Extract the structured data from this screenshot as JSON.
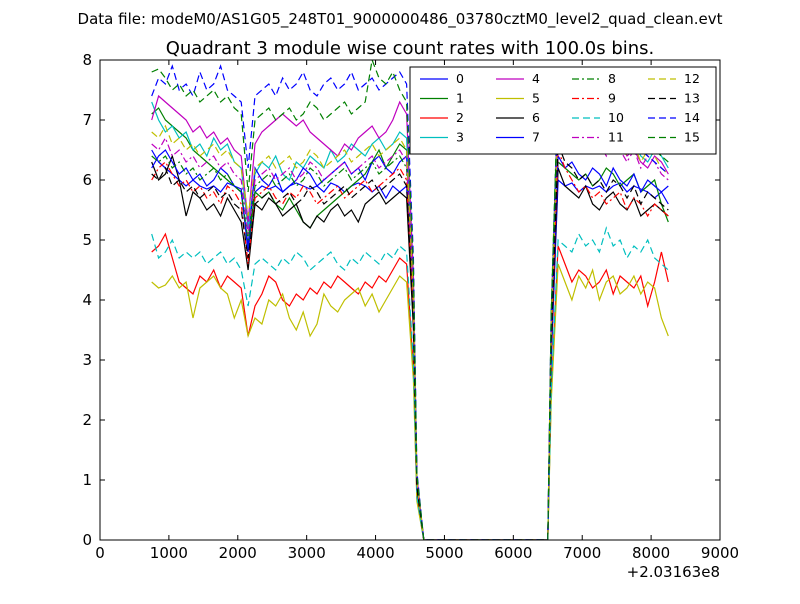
{
  "header": {
    "data_file": "Data file: modeM0/AS1G05_248T01_9000000486_03780cztM0_level2_quad_clean.evt"
  },
  "chart_data": {
    "type": "line",
    "title": "Quadrant 3 module wise count rates with 100.0s bins.",
    "xlabel": "",
    "ylabel": "",
    "xlim": [
      0,
      9000
    ],
    "ylim": [
      0,
      8
    ],
    "xticks": [
      0,
      1000,
      2000,
      3000,
      4000,
      5000,
      6000,
      7000,
      8000,
      9000
    ],
    "yticks": [
      0,
      1,
      2,
      3,
      4,
      5,
      6,
      7,
      8
    ],
    "offset_label": "+2.03163e8",
    "grid": false,
    "legend_position": "top-right",
    "legend_columns": 4,
    "x_start": 750,
    "x_step": 100,
    "gap": {
      "drop_start": 4550,
      "zero_start": 4700,
      "zero_end": 6500,
      "rise_end": 6650
    },
    "x_end": 8150,
    "series": [
      {
        "name": "0",
        "color": "#0000ff",
        "style": "solid",
        "pre": [
          6.5,
          6.3,
          6.2,
          6.1,
          6.0,
          5.9,
          6.0,
          5.9,
          5.85,
          5.9,
          5.8,
          5.95,
          5.9,
          5.85,
          4.8,
          5.8,
          5.9,
          5.85,
          5.9,
          5.8,
          5.9,
          5.95,
          5.9,
          5.85,
          5.9,
          5.8,
          5.95,
          5.9,
          5.8,
          5.9,
          5.95,
          5.9,
          5.8,
          5.9,
          5.7,
          5.9,
          5.8,
          5.9
        ],
        "post": [
          6.0,
          5.9,
          5.95,
          5.8,
          5.9,
          5.85,
          5.9,
          5.8,
          5.9,
          5.95,
          5.8,
          5.9,
          5.85,
          5.8,
          5.7,
          5.8,
          5.6
        ]
      },
      {
        "name": "1",
        "color": "#008000",
        "style": "solid",
        "pre": [
          7.1,
          7.2,
          7.0,
          6.9,
          6.8,
          6.7,
          6.5,
          6.4,
          6.3,
          6.2,
          6.1,
          6.0,
          5.9,
          5.8,
          4.9,
          5.8,
          5.7,
          5.8,
          5.6,
          5.5,
          5.7,
          5.5,
          5.3,
          5.2,
          5.4,
          5.5,
          5.6,
          5.7,
          5.8,
          5.9,
          6.0,
          6.1,
          6.3,
          6.5,
          6.2,
          6.4,
          6.6,
          6.5
        ],
        "post": [
          6.3,
          6.2,
          6.1,
          6.0,
          6.1,
          5.9,
          6.0,
          6.2,
          6.1,
          5.9,
          6.0,
          6.1,
          5.8,
          5.9,
          6.0,
          5.6,
          5.3
        ]
      },
      {
        "name": "2",
        "color": "#ff0000",
        "style": "solid",
        "pre": [
          4.8,
          4.9,
          5.1,
          4.7,
          4.3,
          4.2,
          4.1,
          4.4,
          4.3,
          4.5,
          4.2,
          4.4,
          4.3,
          4.2,
          3.4,
          3.9,
          4.1,
          4.4,
          4.3,
          4.0,
          3.9,
          4.1,
          4.0,
          4.2,
          4.1,
          4.3,
          4.2,
          4.4,
          4.3,
          4.2,
          4.1,
          4.3,
          4.2,
          4.4,
          4.3,
          4.5,
          4.7,
          4.6
        ],
        "post": [
          4.9,
          4.6,
          4.3,
          4.5,
          4.4,
          4.2,
          4.3,
          4.5,
          4.1,
          4.4,
          4.3,
          4.2,
          4.4,
          3.9,
          4.3,
          4.8,
          4.3
        ]
      },
      {
        "name": "3",
        "color": "#00bfbf",
        "style": "solid",
        "pre": [
          7.3,
          7.0,
          6.8,
          6.9,
          6.7,
          6.8,
          6.5,
          6.6,
          6.4,
          6.7,
          6.5,
          6.6,
          6.3,
          6.2,
          5.2,
          6.1,
          6.3,
          6.2,
          6.4,
          6.1,
          6.0,
          6.3,
          6.2,
          6.4,
          6.3,
          6.2,
          6.5,
          6.3,
          6.4,
          6.6,
          6.5,
          6.4,
          6.6,
          6.7,
          6.5,
          6.6,
          6.8,
          6.7
        ],
        "post": [
          7.5,
          7.2,
          6.9,
          7.0,
          6.8,
          6.7,
          6.9,
          6.6,
          6.8,
          6.7,
          6.5,
          6.6,
          6.4,
          6.3,
          6.5,
          6.4,
          6.2
        ]
      },
      {
        "name": "4",
        "color": "#bf00bf",
        "style": "solid",
        "pre": [
          7.0,
          7.4,
          7.3,
          7.2,
          7.1,
          7.0,
          6.8,
          6.9,
          6.7,
          6.8,
          6.6,
          6.7,
          6.5,
          6.4,
          5.3,
          6.6,
          6.8,
          6.9,
          7.0,
          7.1,
          7.0,
          6.9,
          7.0,
          6.8,
          6.7,
          6.6,
          6.5,
          6.4,
          6.6,
          6.5,
          6.7,
          6.8,
          6.9,
          6.7,
          6.8,
          7.0,
          7.3,
          7.1
        ],
        "post": [
          7.4,
          7.1,
          7.0,
          6.9,
          6.7,
          6.8,
          6.6,
          6.7,
          6.5,
          6.6,
          6.4,
          6.5,
          6.3,
          6.2,
          6.4,
          6.3,
          6.1
        ]
      },
      {
        "name": "5",
        "color": "#bfbf00",
        "style": "solid",
        "pre": [
          4.3,
          4.2,
          4.25,
          4.4,
          4.2,
          4.3,
          3.7,
          4.2,
          4.3,
          4.4,
          4.2,
          4.1,
          3.7,
          4.0,
          3.4,
          3.7,
          3.6,
          4.0,
          3.9,
          4.1,
          3.7,
          3.5,
          3.8,
          3.4,
          3.6,
          4.1,
          3.9,
          3.8,
          4.0,
          4.1,
          4.2,
          3.9,
          4.1,
          3.8,
          4.0,
          4.2,
          4.4,
          4.3
        ],
        "post": [
          4.6,
          4.3,
          4.0,
          4.4,
          4.2,
          4.5,
          4.0,
          4.3,
          4.4,
          4.1,
          4.2,
          4.4,
          4.1,
          4.3,
          4.2,
          3.7,
          3.4
        ]
      },
      {
        "name": "6",
        "color": "#000000",
        "style": "solid",
        "pre": [
          6.3,
          6.0,
          6.1,
          6.4,
          6.0,
          5.4,
          5.8,
          5.7,
          5.5,
          5.6,
          5.4,
          5.7,
          5.5,
          5.3,
          4.5,
          5.6,
          5.5,
          5.7,
          5.6,
          5.4,
          5.5,
          5.6,
          5.3,
          5.2,
          5.4,
          5.3,
          5.5,
          5.6,
          5.4,
          5.5,
          5.3,
          5.6,
          5.7,
          5.8,
          5.6,
          5.7,
          5.8,
          5.7
        ],
        "post": [
          6.2,
          5.9,
          5.8,
          5.7,
          5.9,
          5.6,
          5.5,
          5.7,
          5.8,
          5.6,
          5.5,
          5.7,
          5.4,
          5.5,
          5.6,
          5.5,
          5.4
        ]
      },
      {
        "name": "7",
        "color": "#0000ff",
        "style": "solid",
        "pre": [
          6.2,
          6.4,
          6.5,
          6.3,
          6.1,
          6.2,
          6.0,
          6.1,
          5.9,
          6.0,
          6.2,
          6.1,
          5.9,
          5.8,
          4.9,
          6.2,
          6.0,
          5.9,
          6.1,
          5.8,
          5.9,
          6.0,
          6.2,
          6.1,
          5.9,
          6.0,
          6.1,
          6.2,
          6.3,
          6.1,
          6.2,
          6.0,
          6.3,
          6.4,
          6.2,
          6.1,
          6.3,
          6.4
        ],
        "post": [
          6.4,
          6.2,
          6.3,
          6.1,
          6.0,
          6.2,
          6.1,
          5.9,
          6.2,
          6.0,
          5.9,
          6.1,
          5.8,
          6.0,
          5.9,
          5.8,
          5.9
        ]
      },
      {
        "name": "8",
        "color": "#008000",
        "style": "dashdot",
        "pre": [
          6.4,
          6.3,
          6.4,
          6.2,
          6.3,
          6.1,
          6.2,
          6.0,
          6.1,
          6.2,
          6.0,
          6.1,
          5.9,
          5.8,
          5.0,
          5.9,
          6.0,
          6.1,
          5.9,
          6.0,
          6.1,
          5.9,
          6.0,
          6.2,
          6.1,
          5.9,
          6.0,
          6.1,
          6.2,
          6.0,
          6.1,
          6.2,
          6.3,
          6.1,
          6.2,
          6.3,
          6.4,
          6.2
        ],
        "post": [
          7.6,
          7.5,
          7.4,
          7.2,
          7.3,
          7.1,
          7.0,
          7.2,
          6.9,
          7.0,
          6.8,
          6.9,
          6.7,
          6.6,
          6.5,
          6.4,
          6.3
        ]
      },
      {
        "name": "9",
        "color": "#ff0000",
        "style": "dashdot",
        "pre": [
          6.0,
          6.2,
          6.3,
          6.1,
          5.9,
          6.0,
          5.8,
          5.9,
          5.7,
          5.8,
          5.6,
          5.9,
          5.8,
          5.6,
          4.6,
          5.7,
          5.8,
          5.9,
          5.7,
          5.6,
          5.8,
          5.7,
          5.9,
          5.8,
          5.6,
          5.7,
          5.8,
          5.9,
          5.7,
          5.8,
          5.9,
          6.0,
          5.8,
          5.9,
          6.0,
          6.1,
          6.2,
          6.0
        ],
        "post": [
          6.5,
          6.2,
          6.0,
          5.8,
          5.9,
          5.7,
          5.8,
          5.6,
          5.7,
          5.8,
          5.5,
          5.7,
          5.6,
          5.4,
          5.6,
          5.5,
          5.4
        ]
      },
      {
        "name": "10",
        "color": "#00bfbf",
        "style": "dashed",
        "pre": [
          5.1,
          4.7,
          4.8,
          5.0,
          4.7,
          4.8,
          4.7,
          4.8,
          4.6,
          4.7,
          4.8,
          4.6,
          4.7,
          4.5,
          3.9,
          4.6,
          4.7,
          4.6,
          4.5,
          4.7,
          4.6,
          4.8,
          4.7,
          4.5,
          4.6,
          4.7,
          4.8,
          4.6,
          4.5,
          4.7,
          4.6,
          4.8,
          4.7,
          4.6,
          4.8,
          4.7,
          4.9,
          4.8
        ],
        "post": [
          5.0,
          4.9,
          4.8,
          5.1,
          4.9,
          5.0,
          4.8,
          5.2,
          4.9,
          5.0,
          4.7,
          4.9,
          4.8,
          5.0,
          4.7,
          4.6,
          4.5
        ]
      },
      {
        "name": "11",
        "color": "#bf00bf",
        "style": "dashdot",
        "pre": [
          6.6,
          6.5,
          6.7,
          6.4,
          6.5,
          6.3,
          6.4,
          6.2,
          6.3,
          6.4,
          6.2,
          6.3,
          6.1,
          6.0,
          5.1,
          6.0,
          6.1,
          6.2,
          6.0,
          6.1,
          6.2,
          6.0,
          6.1,
          6.3,
          6.2,
          6.0,
          6.1,
          6.2,
          6.3,
          6.1,
          6.2,
          6.3,
          6.4,
          6.2,
          6.3,
          6.4,
          6.5,
          6.3
        ],
        "post": [
          7.0,
          6.8,
          6.7,
          6.6,
          6.8,
          6.5,
          6.6,
          6.4,
          6.7,
          6.5,
          6.3,
          6.5,
          6.2,
          6.4,
          6.3,
          6.1,
          6.0
        ]
      },
      {
        "name": "12",
        "color": "#bfbf00",
        "style": "dashed",
        "pre": [
          6.8,
          6.7,
          6.9,
          6.6,
          6.7,
          6.5,
          6.6,
          6.4,
          6.5,
          6.6,
          6.4,
          6.5,
          6.3,
          6.2,
          5.4,
          6.2,
          6.3,
          6.4,
          6.2,
          6.3,
          6.4,
          6.2,
          6.3,
          6.5,
          6.4,
          6.2,
          6.3,
          6.4,
          6.5,
          6.3,
          6.4,
          6.5,
          6.6,
          6.4,
          6.5,
          6.6,
          6.7,
          6.5
        ],
        "post": [
          7.1,
          6.9,
          6.8,
          6.7,
          6.9,
          6.6,
          6.7,
          6.5,
          6.8,
          6.6,
          6.4,
          6.6,
          6.3,
          6.5,
          6.4,
          6.2,
          6.1
        ]
      },
      {
        "name": "13",
        "color": "#000000",
        "style": "dashed",
        "pre": [
          6.1,
          6.0,
          6.2,
          5.9,
          6.0,
          5.8,
          5.9,
          5.7,
          5.8,
          5.9,
          5.7,
          5.8,
          5.6,
          5.5,
          4.7,
          5.6,
          5.7,
          5.8,
          5.6,
          5.7,
          5.8,
          5.6,
          5.7,
          5.9,
          5.8,
          5.6,
          5.7,
          5.8,
          5.9,
          5.7,
          5.8,
          5.9,
          6.0,
          5.8,
          5.9,
          6.0,
          6.1,
          5.9
        ],
        "post": [
          6.6,
          6.3,
          6.2,
          6.0,
          6.1,
          5.9,
          6.0,
          5.8,
          6.0,
          5.9,
          5.7,
          5.9,
          5.6,
          5.8,
          5.7,
          5.6,
          5.5
        ]
      },
      {
        "name": "14",
        "color": "#0000ff",
        "style": "dashed",
        "pre": [
          7.4,
          7.7,
          7.6,
          7.9,
          7.5,
          7.6,
          7.4,
          7.8,
          7.5,
          7.6,
          7.9,
          7.5,
          7.4,
          7.3,
          6.2,
          7.4,
          7.5,
          7.6,
          7.4,
          7.7,
          7.5,
          7.6,
          7.8,
          7.5,
          7.4,
          7.6,
          7.7,
          7.5,
          7.6,
          7.8,
          7.5,
          7.6,
          7.7,
          7.5,
          7.6,
          7.7,
          7.8,
          7.6
        ],
        "post": [
          7.4,
          7.3,
          7.2,
          7.1,
          7.0,
          6.9,
          7.0,
          6.8,
          6.9,
          6.7,
          6.8,
          6.6,
          6.5,
          6.4,
          6.3,
          6.2,
          6.1
        ]
      },
      {
        "name": "15",
        "color": "#008000",
        "style": "dashed",
        "pre": [
          7.8,
          7.85,
          7.7,
          7.5,
          7.6,
          7.4,
          7.5,
          7.3,
          7.4,
          7.5,
          7.3,
          7.4,
          7.2,
          7.1,
          5.8,
          7.0,
          7.1,
          7.2,
          7.0,
          7.1,
          7.2,
          7.0,
          7.1,
          7.3,
          7.2,
          7.0,
          7.1,
          7.2,
          7.3,
          7.1,
          7.2,
          7.3,
          8.0,
          7.7,
          7.6,
          7.8,
          7.5,
          7.3
        ],
        "post": [
          7.5,
          7.3,
          7.2,
          7.1,
          7.3,
          7.0,
          7.1,
          6.9,
          7.2,
          7.0,
          6.8,
          7.0,
          6.7,
          6.9,
          6.8,
          6.6,
          6.5
        ]
      }
    ]
  }
}
